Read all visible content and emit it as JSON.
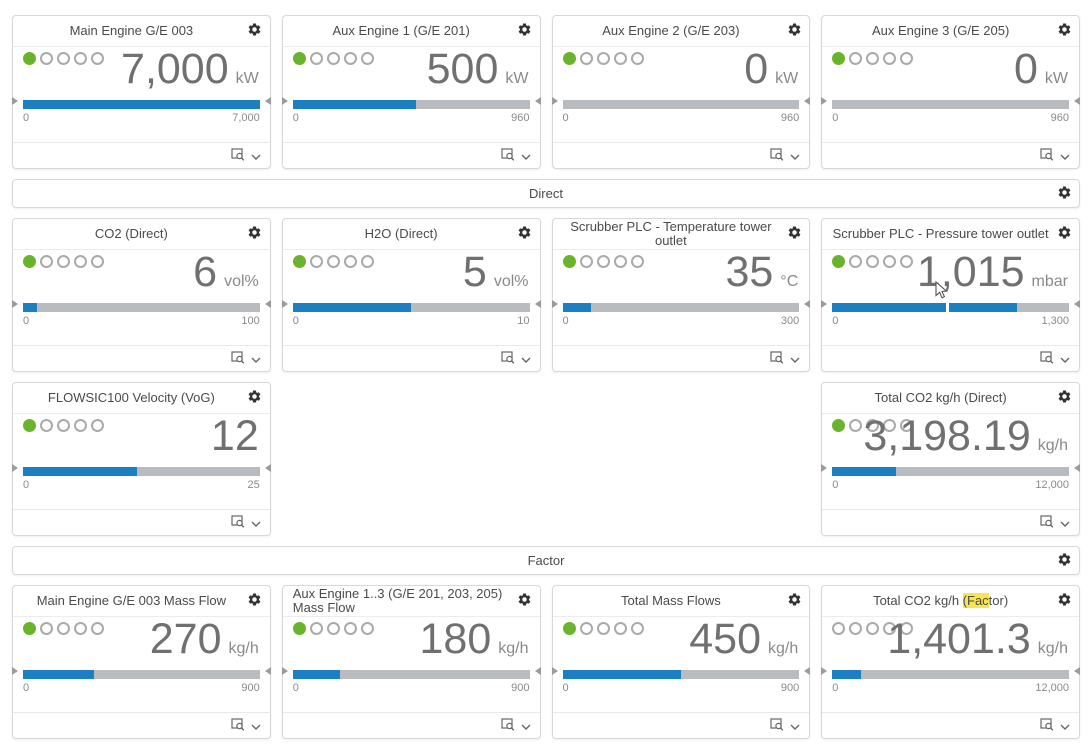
{
  "colors": {
    "bar_fill_blue": "#1b7fc2",
    "bar_track_gray": "#b9bcbe",
    "status_green": "#6ab42d",
    "search_highlight_yellow": "#f6e54f"
  },
  "banners": {
    "direct": "Direct",
    "factor": "Factor"
  },
  "icons": {
    "header_action": "gear-icon",
    "footer_preview": "preview-magnifier-icon",
    "footer_expand": "chevron-down-icon"
  },
  "cards": [
    {
      "title": "Main Engine G/E 003",
      "value": "7,000",
      "unit": "kW",
      "min": "0",
      "max": "7,000",
      "bar_percent": "100%",
      "dots_filled": 1
    },
    {
      "title": "Aux Engine 1 (G/E 201)",
      "value": "500",
      "unit": "kW",
      "min": "0",
      "max": "960",
      "bar_percent": "52%",
      "dots_filled": 1
    },
    {
      "title": "Aux Engine 2 (G/E 203)",
      "value": "0",
      "unit": "kW",
      "min": "0",
      "max": "960",
      "bar_percent": "0%",
      "dots_filled": 1
    },
    {
      "title": "Aux Engine 3 (G/E 205)",
      "value": "0",
      "unit": "kW",
      "min": "0",
      "max": "960",
      "bar_percent": "0%",
      "dots_filled": 1
    },
    {
      "title": "CO2 (Direct)",
      "value": "6",
      "unit": "vol%",
      "min": "0",
      "max": "100",
      "bar_percent": "6%",
      "dots_filled": 1
    },
    {
      "title": "H2O (Direct)",
      "value": "5",
      "unit": "vol%",
      "min": "0",
      "max": "10",
      "bar_percent": "50%",
      "dots_filled": 1
    },
    {
      "title": "Scrubber PLC - Temperature tower outlet",
      "value": "35",
      "unit": "°C",
      "min": "0",
      "max": "300",
      "bar_percent": "12%",
      "dots_filled": 1
    },
    {
      "title": "Scrubber PLC - Pressure tower outlet",
      "value": "1,015",
      "unit": "mbar",
      "min": "0",
      "max": "1,300",
      "bar_percent": "78%",
      "dots_filled": 1,
      "marker_percent": "48%"
    },
    {
      "title": "FLOWSIC100 Velocity (VoG)",
      "value": "12",
      "unit": "",
      "min": "0",
      "max": "25",
      "bar_percent": "48%",
      "dots_filled": 1
    },
    {
      "title": "Total CO2 kg/h (Direct)",
      "value": "3,198.19",
      "unit": "kg/h",
      "min": "0",
      "max": "12,000",
      "bar_percent": "27%",
      "dots_filled": 1
    },
    {
      "title": "Main Engine G/E 003 Mass Flow",
      "value": "270",
      "unit": "kg/h",
      "min": "0",
      "max": "900",
      "bar_percent": "30%",
      "dots_filled": 1
    },
    {
      "title": "Aux Engine 1..3 (G/E 201, 203, 205) Mass Flow",
      "value": "180",
      "unit": "kg/h",
      "min": "0",
      "max": "900",
      "bar_percent": "20%",
      "dots_filled": 1
    },
    {
      "title": "Total Mass Flows",
      "value": "450",
      "unit": "kg/h",
      "min": "0",
      "max": "900",
      "bar_percent": "50%",
      "dots_filled": 1
    },
    {
      "title_parts": {
        "prefix": "Total CO2 kg/h ",
        "highlight": "(Fac",
        "suffix": "tor)"
      },
      "value": "1,401.3",
      "unit": "kg/h",
      "min": "0",
      "max": "12,000",
      "bar_percent": "12%",
      "dots_filled": 0
    }
  ]
}
